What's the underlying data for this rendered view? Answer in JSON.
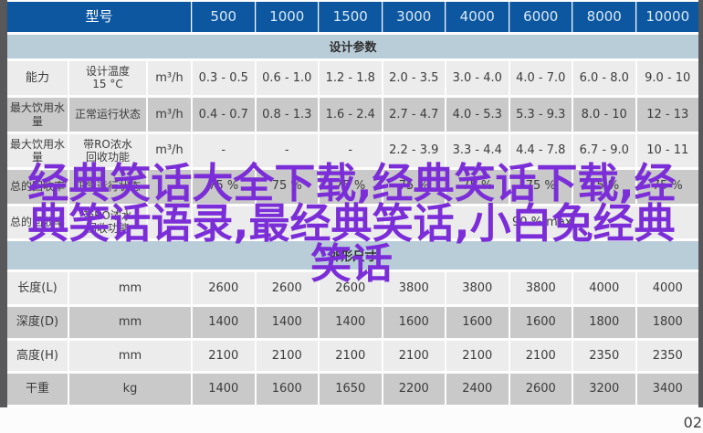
{
  "page": {
    "number": "02"
  },
  "watermark": {
    "full_text": "经典笑话大全下载,经典笑话下载,经典笑话语录,最经典笑话,小白兔经典笑话",
    "line1": "经典笑话大全下载,经典笑话下载,经",
    "line2": "典笑话语录,最经典笑话,小白兔经典",
    "line3": "笑话",
    "color": "#7b2ed8"
  },
  "colors": {
    "header_blue": "#0d57a0",
    "band_blue": "#b9cdd9",
    "row_light": "#ececec",
    "row_gray": "#c9c9c9",
    "frame_gray": "#58585a"
  },
  "table": {
    "header": {
      "model_label": "型号",
      "models": [
        "500",
        "1000",
        "1500",
        "3000",
        "4000",
        "6000",
        "8000",
        "10000"
      ]
    },
    "sections": [
      {
        "title": "设计参数",
        "rows": [
          {
            "label": "能力",
            "condition": "设计温度\n15 °C",
            "unit": "m³/h",
            "values": [
              "0.3 - 0.5",
              "0.6 - 1.0",
              "1.2 - 1.8",
              "2.0 - 3.5",
              "3.0 - 4.0",
              "4.0 - 7.0",
              "6.0 - 8.0",
              "9.0 - 10"
            ]
          },
          {
            "label": "最大饮用水量",
            "condition": "正常运行状态",
            "unit": "m³/h",
            "values": [
              "0.4 - 0.7",
              "0.8 - 1.3",
              "1.6 - 2.4",
              "2.7 - 4.7",
              "4.0 - 5.3",
              "5.3 - 9.3",
              "8.0 - 10",
              "12 - 13"
            ]
          },
          {
            "label": "最大饮用水量",
            "condition": "带RO浓水\n回收功能",
            "unit": "m³/h",
            "values": [
              "-",
              "-",
              "-",
              "2.2 - 3.9",
              "3.3 - 4.4",
              "4.4 - 7.8",
              "6.7 - 9.0",
              "10 - 11"
            ]
          },
          {
            "label": "总的回收率",
            "condition": "正常运行状态",
            "unit": "",
            "values": [
              "75 %",
              "75 %",
              "75 %",
              "75 %",
              "75 %",
              "75 %",
              "75 %",
              "75 %"
            ]
          },
          {
            "label": "总的回收率",
            "condition": "带RO浓水\n回收功能",
            "unit": "",
            "values": [
              "",
              "",
              ""
            ],
            "merged_value": "90 % max"
          }
        ]
      },
      {
        "title": "外形尺寸",
        "rows": [
          {
            "label": "长度(L)",
            "unit": "mm",
            "values": [
              "2600",
              "2600",
              "2600",
              "3800",
              "3800",
              "3800",
              "4000",
              "4000"
            ]
          },
          {
            "label": "深度(D)",
            "unit": "mm",
            "values": [
              "1400",
              "1400",
              "1400",
              "1600",
              "1600",
              "1600",
              "1800",
              "1800"
            ]
          },
          {
            "label": "高度(H)",
            "unit": "mm",
            "values": [
              "2100",
              "2100",
              "2100",
              "2100",
              "2100",
              "2100",
              "2350",
              "2350"
            ]
          },
          {
            "label": "干重",
            "unit": "kg",
            "values": [
              "1400",
              "1600",
              "1650",
              "2200",
              "2400",
              "2600",
              "3200",
              "3400"
            ]
          }
        ]
      }
    ]
  }
}
